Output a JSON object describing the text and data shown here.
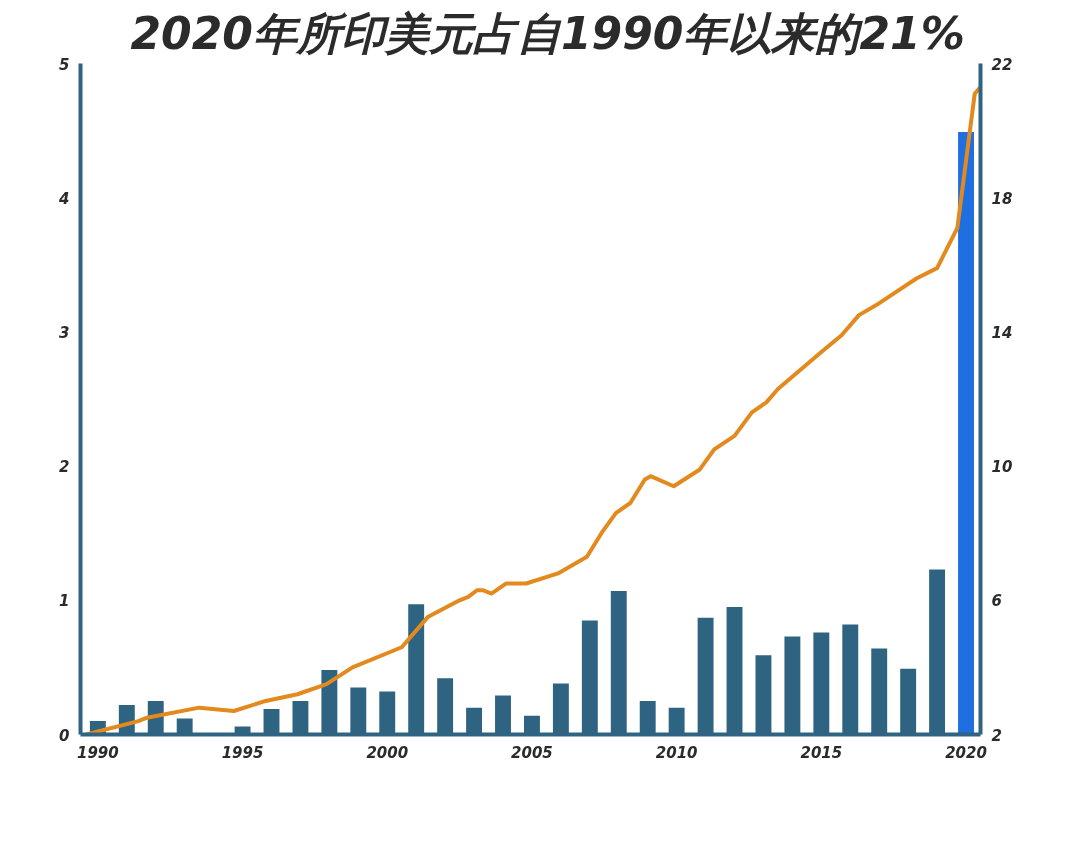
{
  "chart_data": {
    "type": "bar",
    "title": "2020年所印美元占自1990年以来的21%",
    "x": [
      1990,
      1991,
      1992,
      1993,
      1994,
      1995,
      1996,
      1997,
      1998,
      1999,
      2000,
      2001,
      2002,
      2003,
      2004,
      2005,
      2006,
      2007,
      2008,
      2009,
      2010,
      2011,
      2012,
      2013,
      2014,
      2015,
      2016,
      2017,
      2018,
      2019,
      2020
    ],
    "series": [
      {
        "colors": [
          "#2e6482",
          "#2e6482",
          "#2e6482",
          "#2e6482",
          "#2e6482",
          "#2e6482",
          "#2e6482",
          "#2e6482",
          "#2e6482",
          "#2e6482",
          "#2e6482",
          "#2e6482",
          "#2e6482",
          "#2e6482",
          "#2e6482",
          "#2e6482",
          "#2e6482",
          "#2e6482",
          "#2e6482",
          "#2e6482",
          "#2e6482",
          "#2e6482",
          "#2e6482",
          "#2e6482",
          "#2e6482",
          "#2e6482",
          "#2e6482",
          "#2e6482",
          "#2e6482",
          "#2e6482",
          "#1f6fe0"
        ],
        "values": [
          0.1,
          0.22,
          0.25,
          0.12,
          0,
          0.06,
          0.19,
          0.25,
          0.48,
          0.35,
          0.32,
          0.97,
          0.42,
          0.2,
          0.29,
          0.14,
          0.38,
          0.85,
          1.07,
          0.25,
          0.2,
          0.87,
          0.95,
          0.59,
          0.73,
          0.76,
          0.82,
          0.64,
          0.49,
          1.23,
          4.49
        ]
      },
      {
        "type": "line",
        "axis": "y2",
        "color": "#e38a1e",
        "x": [
          1989.6,
          1991.4,
          1991.7,
          1993.5,
          1994.7,
          1995.8,
          1996.9,
          1997.9,
          1998.8,
          2000.5,
          2001.4,
          2002.5,
          2002.8,
          2003.1,
          2003.3,
          2003.6,
          2004.1,
          2004.8,
          2005.9,
          2006.9,
          2007.4,
          2007.9,
          2008.4,
          2008.9,
          2009.1,
          2009.9,
          2010.8,
          2011.3,
          2012.0,
          2012.6,
          2013.1,
          2013.5,
          2015.0,
          2015.7,
          2016.3,
          2016.9,
          2017.6,
          2018.3,
          2019.0,
          2019.7,
          2020.3,
          2020.5
        ],
        "values": [
          2.0,
          2.4,
          2.5,
          2.8,
          2.7,
          3.0,
          3.2,
          3.5,
          4.0,
          4.6,
          5.5,
          6.0,
          6.1,
          6.3,
          6.3,
          6.2,
          6.5,
          6.5,
          6.8,
          7.3,
          8.0,
          8.6,
          8.9,
          9.6,
          9.7,
          9.4,
          9.9,
          10.5,
          10.9,
          11.6,
          11.9,
          12.3,
          13.4,
          13.9,
          14.5,
          14.8,
          15.2,
          15.6,
          15.9,
          17.1,
          21.1,
          21.3
        ]
      }
    ],
    "xlim": [
      1989.4,
      2020.5
    ],
    "xticks": [
      1990,
      1995,
      2000,
      2005,
      2010,
      2015,
      2020
    ],
    "ylim": [
      0,
      5
    ],
    "yticks": [
      0,
      1,
      2,
      3,
      4,
      5
    ],
    "y2lim": [
      2,
      22
    ],
    "y2ticks": [
      2,
      6,
      10,
      14,
      18,
      22
    ],
    "grid": false
  }
}
